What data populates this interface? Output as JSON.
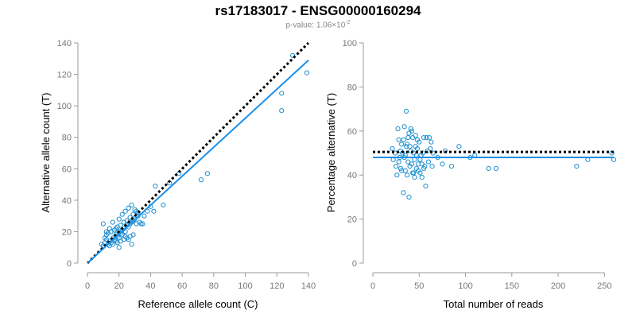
{
  "figure": {
    "title": "rs17183017 - ENSG00000160294",
    "subtitle_prefix": "p-value: 1.06×10",
    "subtitle_exponent": "-2"
  },
  "colors": {
    "points": "#1f8fd0",
    "fit_line": "#1a8fe8",
    "reference_line": "#000000",
    "axis": "#999999",
    "tick_labels": "#777777",
    "axis_titles": "#000000"
  },
  "chart_data": [
    {
      "type": "scatter",
      "xlabel": "Reference allele count (C)",
      "ylabel": "Alternative allele count (T)",
      "xlim": [
        0,
        140
      ],
      "ylim": [
        0,
        140
      ],
      "xticks": [
        0,
        20,
        40,
        60,
        80,
        100,
        120,
        140
      ],
      "yticks": [
        0,
        20,
        40,
        60,
        80,
        100,
        120,
        140
      ],
      "grid": false,
      "reference_line": {
        "style": "dotted",
        "x": [
          0,
          140
        ],
        "y": [
          0,
          140
        ]
      },
      "fit_line": {
        "style": "solid",
        "x": [
          0,
          140
        ],
        "y": [
          0,
          129
        ]
      },
      "points": [
        [
          10,
          11
        ],
        [
          11,
          13
        ],
        [
          12,
          15
        ],
        [
          13,
          12
        ],
        [
          14,
          14
        ],
        [
          15,
          13
        ],
        [
          16,
          16
        ],
        [
          17,
          15
        ],
        [
          18,
          18
        ],
        [
          19,
          17
        ],
        [
          20,
          20
        ],
        [
          21,
          19
        ],
        [
          22,
          21
        ],
        [
          23,
          22
        ],
        [
          24,
          20
        ],
        [
          25,
          24
        ],
        [
          26,
          23
        ],
        [
          27,
          25
        ],
        [
          28,
          26
        ],
        [
          29,
          27
        ],
        [
          30,
          28
        ],
        [
          31,
          25
        ],
        [
          32,
          30
        ],
        [
          33,
          26
        ],
        [
          34,
          25
        ],
        [
          35,
          25
        ],
        [
          36,
          30
        ],
        [
          38,
          33
        ],
        [
          40,
          36
        ],
        [
          42,
          33
        ],
        [
          43,
          49
        ],
        [
          48,
          37
        ],
        [
          52,
          51
        ],
        [
          58,
          57
        ],
        [
          72,
          53
        ],
        [
          76,
          57
        ],
        [
          123,
          108
        ],
        [
          123,
          97
        ],
        [
          130,
          132
        ],
        [
          139,
          121
        ],
        [
          10,
          25
        ],
        [
          12,
          20
        ],
        [
          14,
          22
        ],
        [
          16,
          26
        ],
        [
          18,
          22
        ],
        [
          20,
          28
        ],
        [
          22,
          31
        ],
        [
          24,
          33
        ],
        [
          26,
          35
        ],
        [
          28,
          37
        ],
        [
          30,
          34
        ],
        [
          32,
          32
        ],
        [
          12,
          18
        ],
        [
          15,
          20
        ],
        [
          18,
          14
        ],
        [
          20,
          16
        ],
        [
          22,
          18
        ],
        [
          24,
          17
        ],
        [
          26,
          15
        ],
        [
          28,
          12
        ],
        [
          11,
          16
        ],
        [
          13,
          19
        ],
        [
          17,
          21
        ],
        [
          19,
          23
        ],
        [
          21,
          24
        ],
        [
          23,
          26
        ],
        [
          25,
          27
        ],
        [
          27,
          29
        ],
        [
          29,
          31
        ],
        [
          31,
          33
        ],
        [
          14,
          11
        ],
        [
          16,
          12
        ],
        [
          19,
          13
        ],
        [
          21,
          14
        ],
        [
          23,
          15
        ],
        [
          25,
          16
        ],
        [
          27,
          17
        ],
        [
          29,
          18
        ],
        [
          9,
          12
        ],
        [
          20,
          10
        ]
      ]
    },
    {
      "type": "scatter",
      "xlabel": "Total number of reads",
      "ylabel": "Percentage alternative (T)",
      "xlim": [
        0,
        260
      ],
      "ylim": [
        0,
        100
      ],
      "xticks": [
        0,
        50,
        100,
        150,
        200,
        250
      ],
      "yticks": [
        0,
        20,
        40,
        60,
        80,
        100
      ],
      "grid": false,
      "reference_line": {
        "style": "dotted",
        "x": [
          0,
          260
        ],
        "y": [
          50.5,
          50.5
        ]
      },
      "fit_line": {
        "style": "solid",
        "x": [
          0,
          260
        ],
        "y": [
          48,
          48
        ]
      },
      "points": [
        [
          21,
          52
        ],
        [
          22,
          47
        ],
        [
          24,
          50
        ],
        [
          25,
          44
        ],
        [
          26,
          40
        ],
        [
          27,
          61
        ],
        [
          28,
          46
        ],
        [
          29,
          48
        ],
        [
          30,
          51
        ],
        [
          31,
          42
        ],
        [
          32,
          50
        ],
        [
          33,
          56
        ],
        [
          34,
          62
        ],
        [
          35,
          49
        ],
        [
          36,
          69
        ],
        [
          37,
          54
        ],
        [
          38,
          46
        ],
        [
          39,
          30
        ],
        [
          40,
          53
        ],
        [
          41,
          51
        ],
        [
          42,
          45
        ],
        [
          43,
          57
        ],
        [
          44,
          50
        ],
        [
          45,
          47
        ],
        [
          46,
          58
        ],
        [
          47,
          49
        ],
        [
          48,
          52
        ],
        [
          49,
          42
        ],
        [
          50,
          55
        ],
        [
          51,
          47
        ],
        [
          52,
          49
        ],
        [
          53,
          45
        ],
        [
          54,
          50
        ],
        [
          55,
          57
        ],
        [
          56,
          44
        ],
        [
          57,
          35
        ],
        [
          58,
          57
        ],
        [
          59,
          51
        ],
        [
          60,
          46
        ],
        [
          61,
          57
        ],
        [
          62,
          52
        ],
        [
          63,
          55
        ],
        [
          64,
          44
        ],
        [
          65,
          50
        ],
        [
          70,
          48
        ],
        [
          75,
          45
        ],
        [
          78,
          51
        ],
        [
          85,
          44
        ],
        [
          93,
          53
        ],
        [
          105,
          48
        ],
        [
          110,
          49
        ],
        [
          125,
          43
        ],
        [
          133,
          43
        ],
        [
          220,
          44
        ],
        [
          232,
          47
        ],
        [
          258,
          50
        ],
        [
          260,
          47
        ],
        [
          30,
          43
        ],
        [
          33,
          32
        ],
        [
          35,
          42
        ],
        [
          37,
          40
        ],
        [
          39,
          59
        ],
        [
          41,
          61
        ],
        [
          43,
          41
        ],
        [
          45,
          39
        ],
        [
          47,
          43
        ],
        [
          49,
          45
        ],
        [
          51,
          41
        ],
        [
          53,
          39
        ],
        [
          55,
          43
        ],
        [
          28,
          56
        ],
        [
          31,
          54
        ],
        [
          34,
          48
        ],
        [
          36,
          53
        ],
        [
          38,
          57
        ],
        [
          40,
          44
        ],
        [
          42,
          60
        ],
        [
          44,
          41
        ],
        [
          46,
          53
        ],
        [
          48,
          56
        ]
      ]
    }
  ]
}
